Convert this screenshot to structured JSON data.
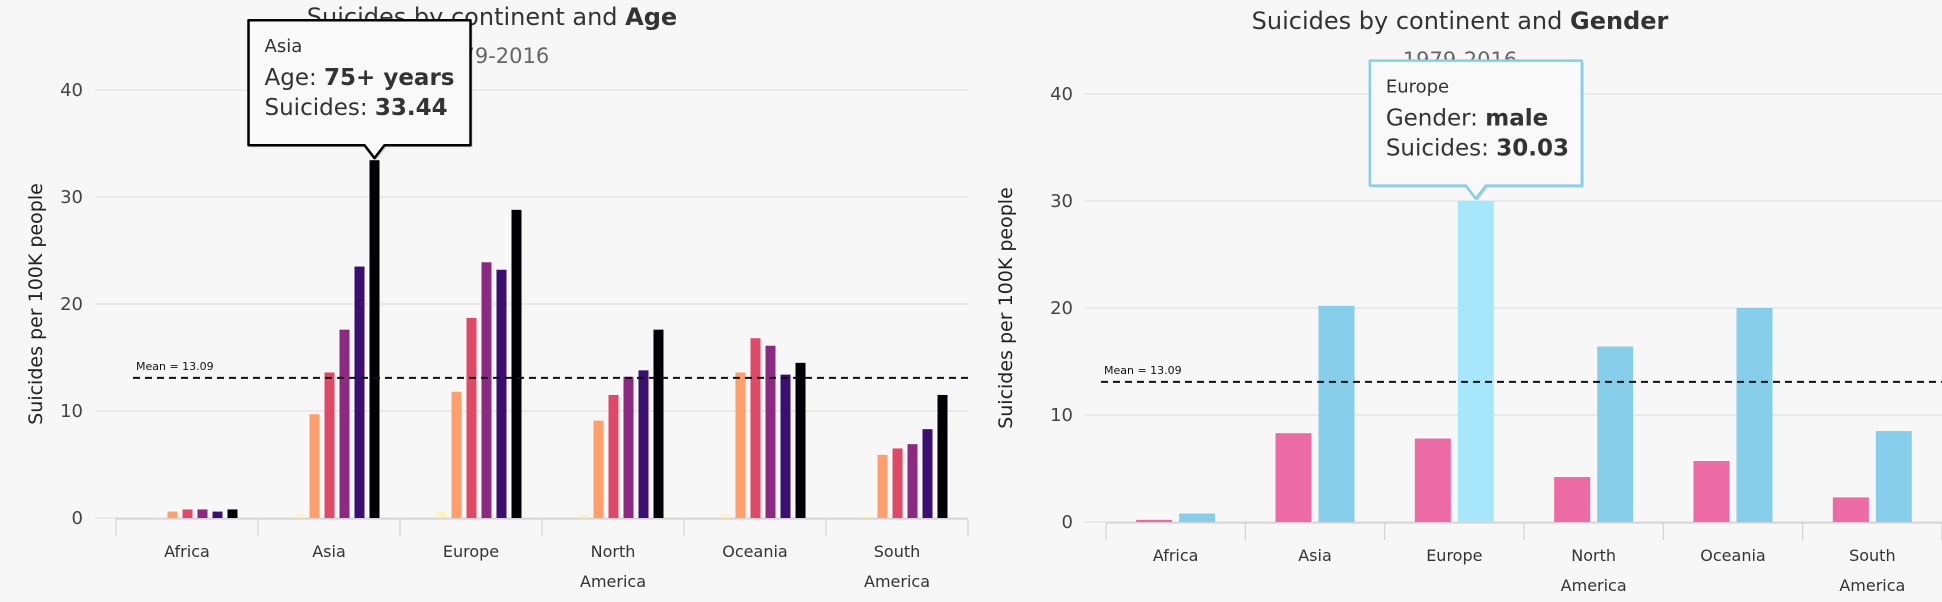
{
  "chart_data": [
    {
      "type": "bar",
      "title_prefix": "Suicides by continent and ",
      "title_bold": "Age",
      "subtitle": "1979-2016",
      "ylabel": "Suicides per 100K people",
      "ylim": [
        0,
        45
      ],
      "yticks": [
        0,
        10,
        20,
        30,
        40
      ],
      "categories": [
        "Africa",
        "Asia",
        "Europe",
        "North America",
        "Oceania",
        "South America"
      ],
      "category_lines": [
        [
          "Africa"
        ],
        [
          "Asia"
        ],
        [
          "Europe"
        ],
        [
          "North",
          "America"
        ],
        [
          "Oceania"
        ],
        [
          "South",
          "America"
        ]
      ],
      "series": [
        {
          "values": [
            0.1,
            0.3,
            0.6,
            0.3,
            0.3,
            0.2
          ],
          "color": "#fcf5b8"
        },
        {
          "values": [
            0.6,
            9.7,
            11.8,
            9.1,
            13.6,
            5.9
          ],
          "color": "#fe9f6d"
        },
        {
          "values": [
            0.8,
            13.6,
            18.7,
            11.5,
            16.8,
            6.5
          ],
          "color": "#de4968"
        },
        {
          "values": [
            0.8,
            17.6,
            23.9,
            13.2,
            16.1,
            6.9
          ],
          "color": "#8c2981"
        },
        {
          "values": [
            0.6,
            23.5,
            23.2,
            13.8,
            13.4,
            8.3
          ],
          "color": "#3b0f70"
        },
        {
          "values": [
            0.8,
            33.44,
            28.8,
            17.6,
            14.5,
            11.5
          ],
          "color": "#000004"
        }
      ],
      "mean": {
        "value": 13.09,
        "label": "Mean = 13.09"
      },
      "tooltip": {
        "series_label": "Asia",
        "line1_key": "Age: ",
        "line1_value": "75+ years",
        "line2_key": "Suicides: ",
        "line2_value": "33.44",
        "category_index": 1,
        "series_index": 5,
        "border_color": "#000000"
      }
    },
    {
      "type": "bar",
      "title_prefix": "Suicides by continent and ",
      "title_bold": "Gender",
      "subtitle": "1979-2016",
      "ylabel": "Suicides per 100K people",
      "ylim": [
        0,
        45
      ],
      "yticks": [
        0,
        10,
        20,
        30,
        40
      ],
      "categories": [
        "Africa",
        "Asia",
        "Europe",
        "North America",
        "Oceania",
        "South America"
      ],
      "category_lines": [
        [
          "Africa"
        ],
        [
          "Asia"
        ],
        [
          "Europe"
        ],
        [
          "North",
          "America"
        ],
        [
          "Oceania"
        ],
        [
          "South",
          "America"
        ]
      ],
      "series": [
        {
          "values": [
            0.2,
            8.3,
            7.8,
            4.2,
            5.7,
            2.3
          ],
          "color": "#ec6ba4"
        },
        {
          "values": [
            0.8,
            20.2,
            30.03,
            16.4,
            20.0,
            8.5
          ],
          "color": "#87ceeb"
        }
      ],
      "highlight": {
        "series_index": 1,
        "category_index": 2,
        "color": "#a6e7fb"
      },
      "mean": {
        "value": 13.09,
        "label": "Mean = 13.09"
      },
      "tooltip": {
        "series_label": "Europe",
        "line1_key": "Gender: ",
        "line1_value": "male",
        "line2_key": "Suicides: ",
        "line2_value": "30.03",
        "category_index": 2,
        "series_index": 1,
        "border_color": "#87ceeb"
      }
    }
  ]
}
